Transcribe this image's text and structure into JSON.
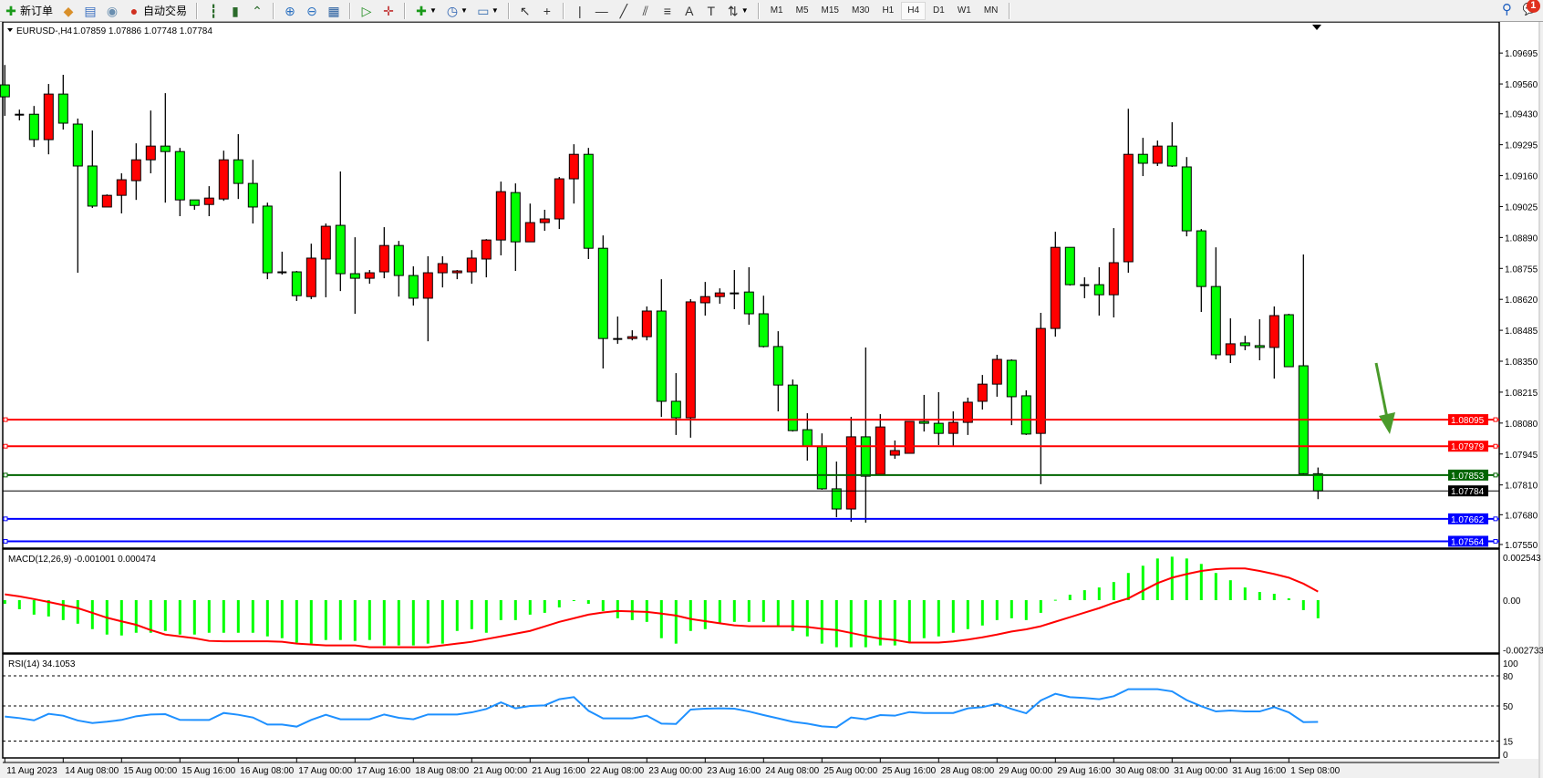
{
  "toolbar": {
    "items": [
      {
        "icon": "new-order",
        "label": "新订单"
      },
      {
        "icon": "metaeditor"
      },
      {
        "icon": "terminal"
      },
      {
        "icon": "signals"
      },
      {
        "icon": "autotrading",
        "label": "自动交易"
      },
      {
        "sep": true
      },
      {
        "icon": "bar-chart"
      },
      {
        "icon": "candlestick-chart"
      },
      {
        "icon": "line-chart"
      },
      {
        "sep": true
      },
      {
        "icon": "zoom-in"
      },
      {
        "icon": "zoom-out"
      },
      {
        "icon": "tile-windows"
      },
      {
        "sep": true
      },
      {
        "icon": "auto-scroll"
      },
      {
        "icon": "chart-shift"
      },
      {
        "sep": true
      },
      {
        "icon": "indicators",
        "dropdown": true
      },
      {
        "icon": "periods",
        "dropdown": true
      },
      {
        "icon": "templates",
        "dropdown": true
      },
      {
        "sep": true
      },
      {
        "icon": "cursor"
      },
      {
        "icon": "crosshair"
      },
      {
        "sep": true
      },
      {
        "icon": "vertical-line"
      },
      {
        "icon": "horizontal-line"
      },
      {
        "icon": "trendline"
      },
      {
        "icon": "equidistant-channel"
      },
      {
        "icon": "fibonacci"
      },
      {
        "icon": "text"
      },
      {
        "icon": "text-label"
      },
      {
        "icon": "arrows",
        "dropdown": true
      },
      {
        "sep": true
      }
    ],
    "timeframes": [
      "M1",
      "M5",
      "M15",
      "M30",
      "H1",
      "H4",
      "D1",
      "W1",
      "MN"
    ],
    "active_timeframe": "H4",
    "notification_count": "1"
  },
  "chart_header": {
    "symbol": "EURUSD-,H4",
    "ohlc_text": "1.07859 1.07886 1.07748 1.07784"
  },
  "annotation": {
    "type": "arrow",
    "color": "#4a9a2a"
  },
  "chart_data": [
    {
      "type": "candlestick",
      "bull_color": "#ff0000",
      "bear_color": "#00ff00",
      "ylim": [
        1.07538,
        1.09823
      ],
      "y_tick_labels": [
        "1.09695",
        "1.09560",
        "1.09430",
        "1.09295",
        "1.09160",
        "1.09025",
        "1.08890",
        "1.08755",
        "1.08620",
        "1.08485",
        "1.08350",
        "1.08215",
        "1.08080",
        "1.07945",
        "1.07810",
        "1.07680",
        "1.07550"
      ],
      "x_tick_labels": [
        {
          "bar": 0,
          "label": "11 Aug 2023"
        },
        {
          "bar": 4,
          "label": "14 Aug 08:00"
        },
        {
          "bar": 8,
          "label": "15 Aug 00:00"
        },
        {
          "bar": 12,
          "label": "15 Aug 16:00"
        },
        {
          "bar": 16,
          "label": "16 Aug 08:00"
        },
        {
          "bar": 20,
          "label": "17 Aug 00:00"
        },
        {
          "bar": 24,
          "label": "17 Aug 16:00"
        },
        {
          "bar": 28,
          "label": "18 Aug 08:00"
        },
        {
          "bar": 32,
          "label": "21 Aug 00:00"
        },
        {
          "bar": 36,
          "label": "21 Aug 16:00"
        },
        {
          "bar": 40,
          "label": "22 Aug 08:00"
        },
        {
          "bar": 44,
          "label": "23 Aug 00:00"
        },
        {
          "bar": 48,
          "label": "23 Aug 16:00"
        },
        {
          "bar": 52,
          "label": "24 Aug 08:00"
        },
        {
          "bar": 56,
          "label": "25 Aug 00:00"
        },
        {
          "bar": 60,
          "label": "25 Aug 16:00"
        },
        {
          "bar": 64,
          "label": "28 Aug 08:00"
        },
        {
          "bar": 68,
          "label": "29 Aug 00:00"
        },
        {
          "bar": 72,
          "label": "29 Aug 16:00"
        },
        {
          "bar": 76,
          "label": "30 Aug 08:00"
        },
        {
          "bar": 80,
          "label": "31 Aug 00:00"
        },
        {
          "bar": 84,
          "label": "31 Aug 16:00"
        },
        {
          "bar": 88,
          "label": "1 Sep 08:00"
        }
      ],
      "levels": [
        {
          "price": 1.08095,
          "label": "1.08095",
          "color": "#ff0000"
        },
        {
          "price": 1.07979,
          "label": "1.07979",
          "color": "#ff0000"
        },
        {
          "price": 1.07853,
          "label": "1.07853",
          "color": "#006400"
        },
        {
          "price": 1.07784,
          "label": "1.07784",
          "color": "#000000"
        },
        {
          "price": 1.07662,
          "label": "1.07662",
          "color": "#0000ff"
        },
        {
          "price": 1.07564,
          "label": "1.07564",
          "color": "#0000ff"
        }
      ],
      "ohlc": [
        [
          1.09556,
          1.09643,
          1.09421,
          1.09504
        ],
        [
          1.09421,
          1.09448,
          1.09401,
          1.09428
        ],
        [
          1.09428,
          1.09464,
          1.09285,
          1.09317
        ],
        [
          1.09317,
          1.0956,
          1.09253,
          1.09516
        ],
        [
          1.09516,
          1.096,
          1.09361,
          1.09389
        ],
        [
          1.09385,
          1.09409,
          1.08736,
          1.09202
        ],
        [
          1.09202,
          1.09357,
          1.09019,
          1.09027
        ],
        [
          1.09023,
          1.09078,
          1.09023,
          1.09074
        ],
        [
          1.09074,
          1.0917,
          1.08995,
          1.09142
        ],
        [
          1.09138,
          1.09301,
          1.09054,
          1.09229
        ],
        [
          1.09229,
          1.09444,
          1.0917,
          1.09289
        ],
        [
          1.09289,
          1.0952,
          1.09042,
          1.09265
        ],
        [
          1.09265,
          1.09281,
          1.08983,
          1.09054
        ],
        [
          1.09054,
          1.09054,
          1.09011,
          1.0903
        ],
        [
          1.09034,
          1.09114,
          1.08983,
          1.09062
        ],
        [
          1.09058,
          1.09269,
          1.0905,
          1.09229
        ],
        [
          1.09229,
          1.09341,
          1.09058,
          1.09126
        ],
        [
          1.09126,
          1.09229,
          1.08951,
          1.09023
        ],
        [
          1.09027,
          1.09042,
          1.08708,
          1.08736
        ],
        [
          1.08736,
          1.08828,
          1.08728,
          1.0874
        ],
        [
          1.0874,
          1.08744,
          1.08613,
          1.08636
        ],
        [
          1.08632,
          1.08863,
          1.08621,
          1.088
        ],
        [
          1.08796,
          1.08951,
          1.08629,
          1.08939
        ],
        [
          1.08943,
          1.09178,
          1.08656,
          1.08732
        ],
        [
          1.08732,
          1.08891,
          1.08557,
          1.08712
        ],
        [
          1.08712,
          1.08748,
          1.08688,
          1.08736
        ],
        [
          1.0874,
          1.08935,
          1.08712,
          1.08855
        ],
        [
          1.08855,
          1.08875,
          1.08632,
          1.08724
        ],
        [
          1.08724,
          1.08764,
          1.08593,
          1.08625
        ],
        [
          1.08625,
          1.08808,
          1.08437,
          1.08736
        ],
        [
          1.08736,
          1.08808,
          1.08672,
          1.08776
        ],
        [
          1.08736,
          1.08748,
          1.08708,
          1.08744
        ],
        [
          1.0874,
          1.08835,
          1.08688,
          1.088
        ],
        [
          1.08796,
          1.08883,
          1.08716,
          1.08879
        ],
        [
          1.08879,
          1.09134,
          1.08812,
          1.0909
        ],
        [
          1.09086,
          1.09126,
          1.08744,
          1.08871
        ],
        [
          1.08871,
          1.09038,
          1.08871,
          1.08955
        ],
        [
          1.08955,
          1.09011,
          1.08919,
          1.08971
        ],
        [
          1.08971,
          1.09154,
          1.08927,
          1.09146
        ],
        [
          1.09146,
          1.09297,
          1.09038,
          1.09253
        ],
        [
          1.09253,
          1.09281,
          1.08796,
          1.08843
        ],
        [
          1.08843,
          1.08899,
          1.08318,
          1.08449
        ],
        [
          1.08449,
          1.08545,
          1.08426,
          1.08445
        ],
        [
          1.08449,
          1.08485,
          1.08441,
          1.08457
        ],
        [
          1.08457,
          1.08589,
          1.08441,
          1.08569
        ],
        [
          1.08569,
          1.08708,
          1.08107,
          1.08175
        ],
        [
          1.08175,
          1.08298,
          1.08028,
          1.08103
        ],
        [
          1.08103,
          1.08621,
          1.08016,
          1.08609
        ],
        [
          1.08605,
          1.08696,
          1.08549,
          1.08632
        ],
        [
          1.08632,
          1.08668,
          1.08601,
          1.08648
        ],
        [
          1.08648,
          1.08748,
          1.08577,
          1.08644
        ],
        [
          1.08652,
          1.0876,
          1.08509,
          1.08557
        ],
        [
          1.08557,
          1.08636,
          1.0841,
          1.08414
        ],
        [
          1.08414,
          1.08481,
          1.08131,
          1.08246
        ],
        [
          1.08246,
          1.0827,
          1.08043,
          1.08047
        ],
        [
          1.08051,
          1.08123,
          1.07916,
          1.0798
        ],
        [
          1.07976,
          1.08035,
          1.07789,
          1.07793
        ],
        [
          1.07793,
          1.07912,
          1.07669,
          1.07705
        ],
        [
          1.07705,
          1.08107,
          1.07649,
          1.0802
        ],
        [
          1.0802,
          1.0841,
          1.07645,
          1.07848
        ],
        [
          1.07856,
          1.08119,
          1.07856,
          1.08063
        ],
        [
          1.0794,
          1.08004,
          1.07924,
          1.0796
        ],
        [
          1.07948,
          1.08087,
          1.07948,
          1.08087
        ],
        [
          1.08087,
          1.08203,
          1.08043,
          1.08079
        ],
        [
          1.08079,
          1.08215,
          1.07984,
          1.08035
        ],
        [
          1.08035,
          1.08131,
          1.0798,
          1.08083
        ],
        [
          1.08083,
          1.08191,
          1.08028,
          1.08171
        ],
        [
          1.08175,
          1.0829,
          1.08139,
          1.0825
        ],
        [
          1.0825,
          1.08378,
          1.08195,
          1.08358
        ],
        [
          1.08354,
          1.08358,
          1.08071,
          1.08195
        ],
        [
          1.08199,
          1.08223,
          1.08028,
          1.08032
        ],
        [
          1.08035,
          1.08561,
          1.07813,
          1.08493
        ],
        [
          1.08493,
          1.08915,
          1.08457,
          1.08847
        ],
        [
          1.08847,
          1.08847,
          1.0868,
          1.08684
        ],
        [
          1.08684,
          1.08716,
          1.08625,
          1.08684
        ],
        [
          1.08684,
          1.0876,
          1.08549,
          1.0864
        ],
        [
          1.0864,
          1.08931,
          1.08541,
          1.0878
        ],
        [
          1.08784,
          1.09452,
          1.08736,
          1.09253
        ],
        [
          1.09253,
          1.09325,
          1.09158,
          1.09214
        ],
        [
          1.09214,
          1.09313,
          1.09202,
          1.09289
        ],
        [
          1.09289,
          1.09393,
          1.09198,
          1.09202
        ],
        [
          1.09198,
          1.09241,
          1.08895,
          1.08919
        ],
        [
          1.08919,
          1.08927,
          1.08565,
          1.08676
        ],
        [
          1.08676,
          1.08847,
          1.08358,
          1.08378
        ],
        [
          1.08378,
          1.08537,
          1.08342,
          1.08426
        ],
        [
          1.0843,
          1.08461,
          1.08398,
          1.08418
        ],
        [
          1.08418,
          1.08533,
          1.08354,
          1.0841
        ],
        [
          1.0841,
          1.08589,
          1.08274,
          1.08549
        ],
        [
          1.08553,
          1.08557,
          1.08326,
          1.08326
        ],
        [
          1.0833,
          1.08816,
          1.07856,
          1.07859
        ],
        [
          1.07859,
          1.07886,
          1.07748,
          1.07784
        ]
      ]
    },
    {
      "type": "bar",
      "title": "MACD(12,26,9) -0.001001 0.000474",
      "hist_color": "#00ff00",
      "signal_color": "#ff0000",
      "ylim": [
        -0.00287,
        0.00277
      ],
      "y_tick_labels": [
        "0.002543",
        "0.00",
        "-0.002733"
      ],
      "y_tick_values": [
        0.002543,
        0,
        -0.002733
      ],
      "macd": [
        -0.0002,
        -0.0005,
        -0.0008,
        -0.0009,
        -0.0011,
        -0.0013,
        -0.0016,
        -0.0019,
        -0.00195,
        -0.0018,
        -0.0018,
        -0.0017,
        -0.0019,
        -0.0019,
        -0.0018,
        -0.0018,
        -0.0018,
        -0.0018,
        -0.002,
        -0.0021,
        -0.00235,
        -0.0024,
        -0.0022,
        -0.0022,
        -0.00225,
        -0.0022,
        -0.0025,
        -0.0025,
        -0.0025,
        -0.0024,
        -0.0024,
        -0.0017,
        -0.0016,
        -0.0018,
        -0.0011,
        -0.0011,
        -0.0008,
        -0.0007,
        -0.0004,
        -5e-05,
        -0.0002,
        -0.0006,
        -0.001,
        -0.0011,
        -0.0012,
        -0.0021,
        -0.0024,
        -0.0017,
        -0.0016,
        -0.0013,
        -0.0012,
        -0.0012,
        -0.0012,
        -0.0014,
        -0.0017,
        -0.002,
        -0.0024,
        -0.0026,
        -0.0026,
        -0.0026,
        -0.0025,
        -0.0025,
        -0.0023,
        -0.0021,
        -0.002,
        -0.0018,
        -0.0016,
        -0.0014,
        -0.0011,
        -0.001,
        -0.0011,
        -0.0007,
        2e-05,
        0.0003,
        0.00055,
        0.0007,
        0.001,
        0.0015,
        0.0019,
        0.0023,
        0.0024,
        0.0023,
        0.002,
        0.0015,
        0.0011,
        0.0007,
        0.00045,
        0.00035,
        0.0001,
        -0.00055,
        -0.001001
      ],
      "signal": [
        0.00032,
        0.00021,
        6e-05,
        -0.0001,
        -0.00027,
        -0.00044,
        -0.0007,
        -0.00097,
        -0.00117,
        -0.00136,
        -0.00165,
        -0.0019,
        -0.002,
        -0.0021,
        -0.00225,
        -0.00227,
        -0.00227,
        -0.00227,
        -0.00227,
        -0.0023,
        -0.0024,
        -0.00245,
        -0.0025,
        -0.0025,
        -0.0025,
        -0.0026,
        -0.0026,
        -0.0026,
        -0.0026,
        -0.0026,
        -0.0025,
        -0.0024,
        -0.0023,
        -0.00215,
        -0.002,
        -0.00185,
        -0.0017,
        -0.00145,
        -0.0012,
        -0.001,
        -0.0008,
        -0.00068,
        -0.0006,
        -0.00062,
        -0.00065,
        -0.00074,
        -0.00085,
        -0.00104,
        -0.00116,
        -0.00128,
        -0.00139,
        -0.00144,
        -0.00144,
        -0.00144,
        -0.00144,
        -0.00148,
        -0.00158,
        -0.00165,
        -0.00181,
        -0.00198,
        -0.00212,
        -0.0022,
        -0.00234,
        -0.00234,
        -0.00234,
        -0.00228,
        -0.00218,
        -0.00205,
        -0.0019,
        -0.00173,
        -0.00161,
        -0.00144,
        -0.00119,
        -0.00094,
        -0.00069,
        -0.00044,
        -0.00015,
        0.0001,
        0.00052,
        0.00094,
        0.00124,
        0.00144,
        0.00161,
        0.00171,
        0.00175,
        0.00175,
        0.00161,
        0.00144,
        0.00124,
        0.00091,
        0.000474
      ]
    },
    {
      "type": "line",
      "title": "RSI(14) 34.1053",
      "line_color": "#1e90ff",
      "ylim": [
        0,
        100
      ],
      "y_tick_labels": [
        "100",
        "80",
        "50",
        "15",
        "0"
      ],
      "y_tick_values": [
        100,
        80,
        50,
        15,
        0
      ],
      "levels": [
        80,
        50,
        15
      ],
      "values": [
        39.4,
        37.9,
        35.7,
        42.1,
        40.3,
        35.5,
        33,
        34.3,
        36.1,
        39.7,
        41.5,
        41.8,
        36.1,
        36,
        36,
        43,
        41.2,
        38.5,
        31.5,
        31.5,
        29.4,
        36.1,
        41.2,
        36.7,
        36.7,
        36.7,
        41.5,
        38.2,
        36.7,
        41.5,
        41.5,
        41.5,
        43.6,
        47,
        53.6,
        47.6,
        50,
        50.6,
        56.7,
        58.8,
        45.2,
        37.6,
        37.6,
        37.6,
        40.3,
        32.4,
        32.1,
        46.4,
        47.3,
        47.6,
        47.3,
        44.5,
        40.9,
        37.6,
        34.2,
        32.4,
        29.7,
        28.8,
        38.5,
        36.7,
        40.9,
        40.3,
        43.9,
        43,
        43,
        43,
        47.6,
        48.8,
        52.1,
        47,
        42.7,
        55.5,
        62.1,
        58.8,
        57.9,
        56.7,
        59.7,
        66.7,
        66.7,
        66.7,
        64.5,
        55.8,
        49.7,
        44.5,
        45.5,
        44.5,
        44.5,
        48.8,
        43.6,
        33.9,
        34.1053
      ]
    }
  ]
}
